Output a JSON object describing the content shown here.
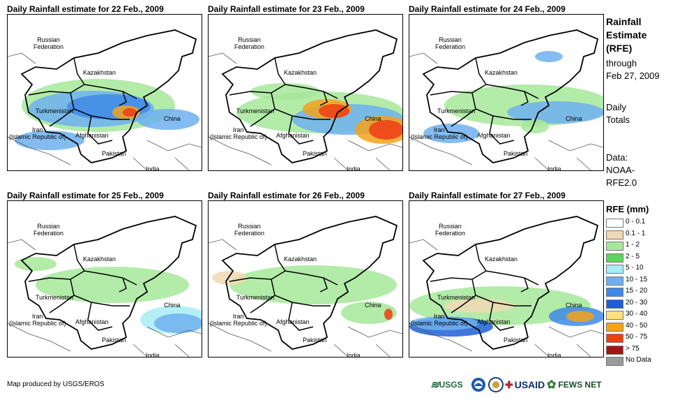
{
  "panels": [
    {
      "title": "Daily Rainfall estimate for 22 Feb., 2009"
    },
    {
      "title": "Daily Rainfall estimate for 23 Feb., 2009"
    },
    {
      "title": "Daily Rainfall estimate for 24 Feb., 2009"
    },
    {
      "title": "Daily Rainfall estimate for 25 Feb., 2009"
    },
    {
      "title": "Daily Rainfall estimate for 26 Feb., 2009"
    },
    {
      "title": "Daily Rainfall estimate for 27 Feb., 2009"
    }
  ],
  "map_labels": {
    "russia_1": "Russian",
    "russia_2": "Federation",
    "kazakhstan": "Kazakhstan",
    "turkmenistan": "Turkmenistan",
    "china": "China",
    "iran_1": "Iran",
    "iran_2": "(Islamic Republic of)",
    "afghanistan": "Afghanistan",
    "pakistan": "Pakistan",
    "india": "India"
  },
  "side": {
    "line1": "Rainfall",
    "line2": "Estimate",
    "line3": "(RFE)",
    "line4": "through",
    "line5": "Feb 27, 2009",
    "line6": "Daily",
    "line7": "Totals",
    "line8": "Data:",
    "line9": "NOAA-",
    "line10": "RFE2.0"
  },
  "legend": {
    "title": "RFE (mm)",
    "items": [
      {
        "label": "0 - 0.1",
        "color": "#ffffff"
      },
      {
        "label": "0.1 - 1",
        "color": "#f0d9b5"
      },
      {
        "label": "1 - 2",
        "color": "#a6e89a"
      },
      {
        "label": "2 - 5",
        "color": "#5fd45c"
      },
      {
        "label": "5 - 10",
        "color": "#a8ecf5"
      },
      {
        "label": "10 - 15",
        "color": "#6fb0f0"
      },
      {
        "label": "15 - 20",
        "color": "#3e8ae8"
      },
      {
        "label": "20 - 30",
        "color": "#1f5fd6"
      },
      {
        "label": "30 - 40",
        "color": "#ffe07a"
      },
      {
        "label": "40 - 50",
        "color": "#f5a21a"
      },
      {
        "label": "50 - 75",
        "color": "#f03c14"
      },
      {
        "label": "> 75",
        "color": "#a41414"
      },
      {
        "label": "No Data",
        "color": "#9a9a9a"
      }
    ]
  },
  "footer": {
    "credit": "Map produced by USGS/EROS",
    "logo_usgs": "USGS",
    "logo_usaid": "USAID",
    "logo_fews": "FEWS NET"
  }
}
